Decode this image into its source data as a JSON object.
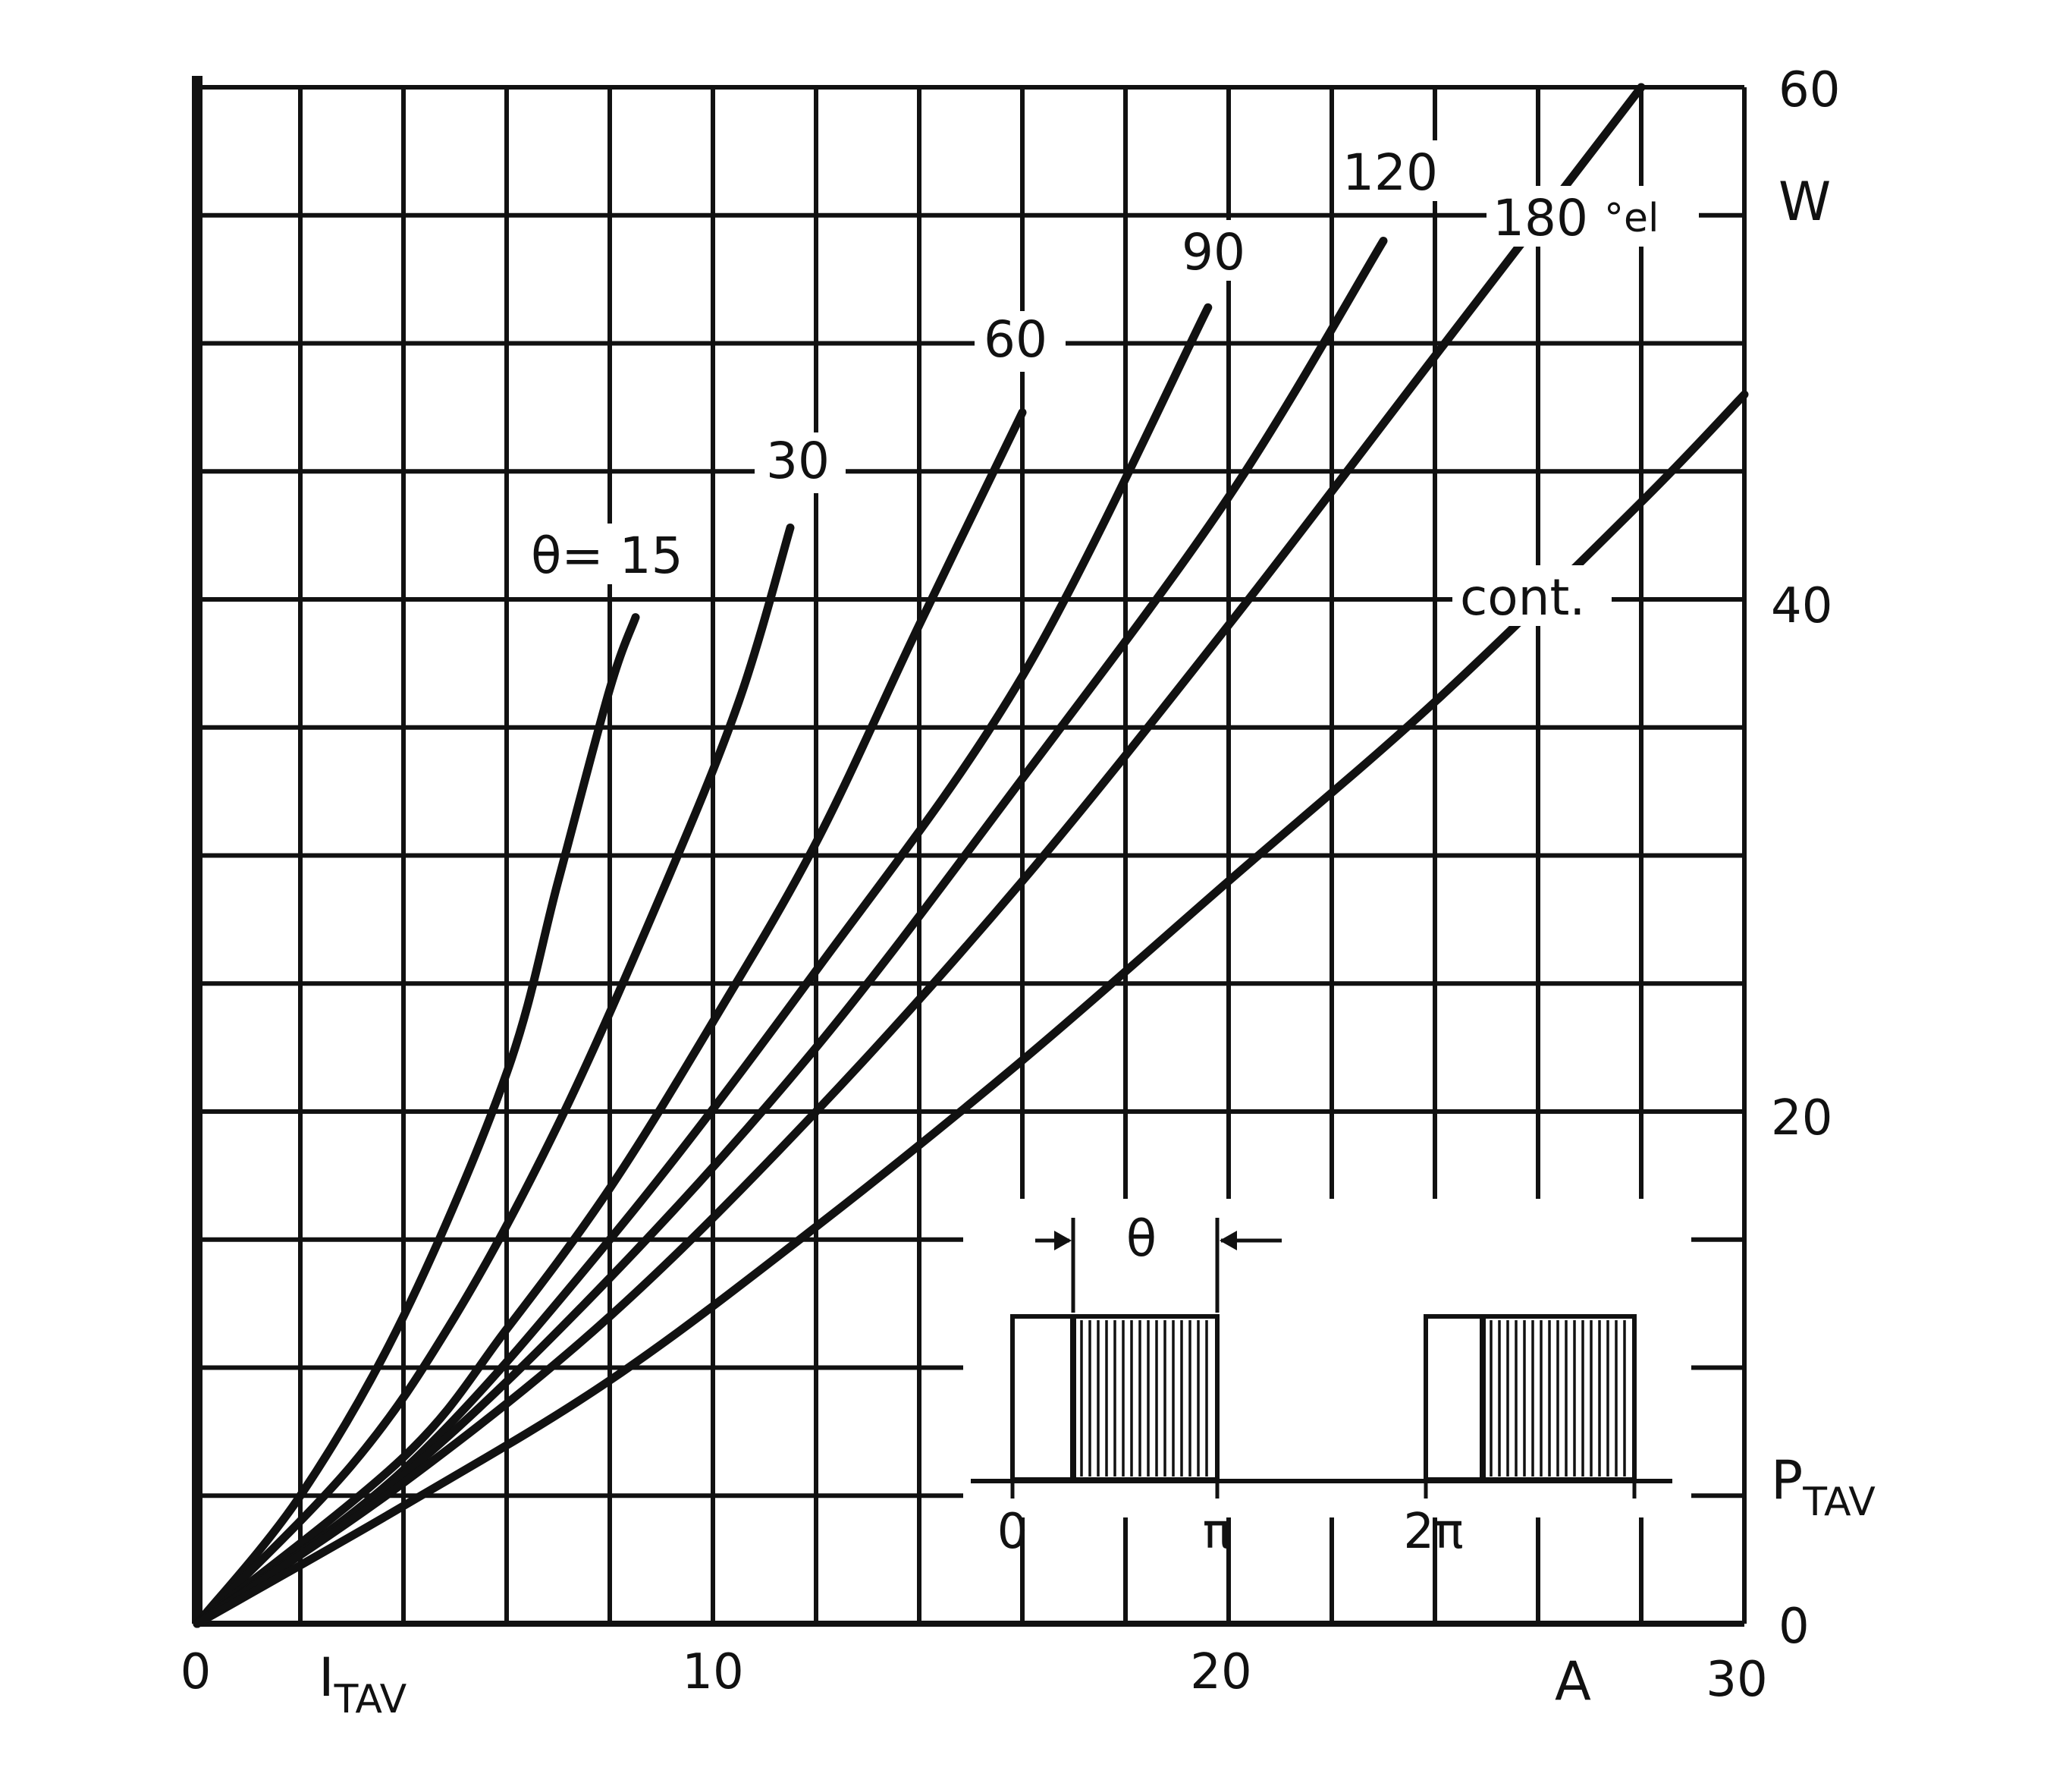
{
  "chart_data": {
    "type": "line",
    "x_axis": {
      "ticks": [
        "0",
        "10",
        "20",
        "30"
      ],
      "range": [
        0,
        30
      ],
      "label_main": "I",
      "label_sub": "TAV",
      "unit": "A"
    },
    "y_axis": {
      "ticks": [
        "0",
        "20",
        "40",
        "60"
      ],
      "range": [
        0,
        60
      ],
      "label_main": "P",
      "label_sub": "TAV",
      "unit": "W",
      "position": "right"
    },
    "grid": true,
    "series": [
      {
        "name": "θ= 15",
        "points": [
          [
            0,
            0
          ],
          [
            2,
            5.0
          ],
          [
            4,
            12.0
          ],
          [
            6,
            21.5
          ],
          [
            7,
            29.0
          ],
          [
            8.0,
            36.5
          ],
          [
            8.5,
            39.3
          ]
        ]
      },
      {
        "name": "30",
        "points": [
          [
            0,
            0
          ],
          [
            3,
            6.2
          ],
          [
            5,
            12.0
          ],
          [
            7,
            19.5
          ],
          [
            9,
            28.5
          ],
          [
            10.5,
            36.0
          ],
          [
            11.5,
            42.8
          ]
        ]
      },
      {
        "name": "60",
        "points": [
          [
            0,
            0
          ],
          [
            4,
            6.5
          ],
          [
            6,
            11.5
          ],
          [
            8,
            17.0
          ],
          [
            10,
            23.5
          ],
          [
            12,
            30.5
          ],
          [
            14,
            39.0
          ],
          [
            16,
            47.3
          ]
        ]
      },
      {
        "name": "90",
        "points": [
          [
            0,
            0
          ],
          [
            4,
            6.0
          ],
          [
            8,
            15.0
          ],
          [
            12,
            25.5
          ],
          [
            16,
            37.0
          ],
          [
            19.6,
            51.4
          ]
        ]
      },
      {
        "name": "120",
        "points": [
          [
            0,
            0
          ],
          [
            4,
            5.8
          ],
          [
            8,
            13.5
          ],
          [
            12,
            22.5
          ],
          [
            16,
            33.0
          ],
          [
            20,
            44.0
          ],
          [
            23.0,
            54.0
          ]
        ]
      },
      {
        "name": "180",
        "points": [
          [
            0,
            0
          ],
          [
            4,
            5.5
          ],
          [
            8,
            12.0
          ],
          [
            12,
            20.0
          ],
          [
            16,
            29.0
          ],
          [
            20,
            39.0
          ],
          [
            24,
            49.5
          ],
          [
            28.0,
            60.0
          ]
        ]
      },
      {
        "name": "cont.",
        "points": [
          [
            0,
            0
          ],
          [
            4,
            4.6
          ],
          [
            8,
            9.5
          ],
          [
            12,
            15.5
          ],
          [
            16,
            22.0
          ],
          [
            20,
            29.0
          ],
          [
            24,
            36.0
          ],
          [
            28.0,
            43.8
          ],
          [
            30.0,
            48.0
          ]
        ]
      }
    ],
    "annotations": {
      "unit_note": "°el",
      "inset": {
        "theta_label": "θ",
        "ticks": [
          "0",
          "π",
          "2π"
        ]
      }
    }
  }
}
